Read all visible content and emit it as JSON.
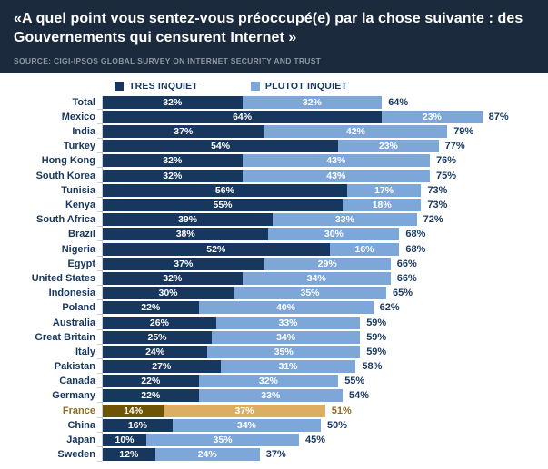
{
  "header": {
    "title": "«A quel point vous sentez-vous préoccupé(e) par la chose suivante : des Gouvernements qui censurent Internet »",
    "source": "SOURCE: CIGI-IPSOS GLOBAL SURVEY ON INTERNET SECURITY AND TRUST",
    "background_color": "#1b2a3c"
  },
  "legend": [
    {
      "label": "TRES INQUIET",
      "color": "#17375e"
    },
    {
      "label": "PLUTOT INQUIET",
      "color": "#7da7d9"
    }
  ],
  "chart_data": {
    "type": "bar",
    "orientation": "horizontal",
    "stacked": true,
    "xlim": [
      0,
      100
    ],
    "value_suffix": "%",
    "grid": false,
    "legend_position": "top",
    "categories": [
      "Total",
      "Mexico",
      "India",
      "Turkey",
      "Hong Kong",
      "South Korea",
      "Tunisia",
      "Kenya",
      "South Africa",
      "Brazil",
      "Nigeria",
      "Egypt",
      "United States",
      "Indonesia",
      "Poland",
      "Australia",
      "Great Britain",
      "Italy",
      "Pakistan",
      "Canada",
      "Germany",
      "France",
      "China",
      "Japan",
      "Sweden"
    ],
    "series": [
      {
        "name": "TRES INQUIET",
        "values": [
          32,
          64,
          37,
          54,
          32,
          32,
          56,
          55,
          39,
          38,
          52,
          37,
          32,
          30,
          22,
          26,
          25,
          24,
          27,
          22,
          22,
          14,
          16,
          10,
          12
        ]
      },
      {
        "name": "PLUTOT INQUIET",
        "values": [
          32,
          23,
          42,
          23,
          43,
          43,
          17,
          18,
          33,
          30,
          16,
          29,
          34,
          35,
          40,
          33,
          34,
          35,
          31,
          32,
          33,
          37,
          34,
          35,
          24
        ]
      }
    ],
    "totals": [
      64,
      87,
      79,
      77,
      76,
      75,
      73,
      73,
      72,
      68,
      68,
      66,
      66,
      65,
      62,
      59,
      59,
      59,
      58,
      55,
      54,
      51,
      50,
      45,
      37
    ],
    "colors": {
      "tres_inquiet": "#17375e",
      "plutot_inquiet": "#7da7d9"
    },
    "highlight": {
      "category": "France",
      "dark_color": "#6f5405",
      "light_color": "#dcae63",
      "text_color": "#8c6e20"
    },
    "title": "«A quel point vous sentez-vous préoccupé(e) par la chose suivante : des Gouvernements qui censurent Internet »",
    "xlabel": "",
    "ylabel": ""
  }
}
